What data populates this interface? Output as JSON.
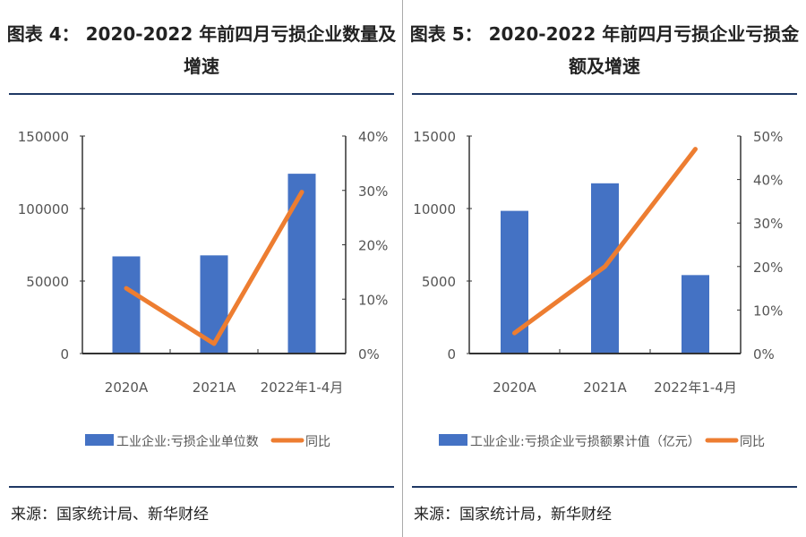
{
  "chart_data": [
    {
      "type": "bar+line",
      "title": "图表 4： 2020-2022 年前四月亏损企业数量及增速",
      "categories": [
        "2020A",
        "2021A",
        "2022年1-4月"
      ],
      "series": [
        {
          "name": "工业企业:亏损企业单位数",
          "type": "bar",
          "axis": "left",
          "color": "#4472c4",
          "values": [
            67000,
            67700,
            124000
          ]
        },
        {
          "name": "同比",
          "type": "line",
          "axis": "right",
          "color": "#ed7d31",
          "values": [
            12,
            1.8,
            29.7
          ]
        }
      ],
      "ylim_left": [
        0,
        150000
      ],
      "yticks_left": [
        "0",
        "50000",
        "100000",
        "150000"
      ],
      "ylim_right": [
        0,
        40
      ],
      "yticks_right": [
        "0%",
        "10%",
        "20%",
        "30%",
        "40%"
      ],
      "legend": "bottom",
      "source": "来源：国家统计局、新华财经"
    },
    {
      "type": "bar+line",
      "title": "图表 5： 2020-2022 年前四月亏损企业亏损金额及增速",
      "categories": [
        "2020A",
        "2021A",
        "2022年1-4月"
      ],
      "series": [
        {
          "name": "工业企业:亏损企业亏损额累计值（亿元）",
          "type": "bar",
          "axis": "left",
          "color": "#4472c4",
          "values": [
            9840,
            11740,
            5410
          ]
        },
        {
          "name": "同比",
          "type": "line",
          "axis": "right",
          "color": "#ed7d31",
          "values": [
            4.7,
            20,
            47
          ]
        }
      ],
      "ylim_left": [
        0,
        15000
      ],
      "yticks_left": [
        "0",
        "5000",
        "10000",
        "15000"
      ],
      "ylim_right": [
        0,
        50
      ],
      "yticks_right": [
        "0%",
        "10%",
        "20%",
        "30%",
        "40%",
        "50%"
      ],
      "legend": "bottom",
      "source": "来源：国家统计局，新华财经"
    }
  ],
  "panels": [
    {
      "title_line1": "图表 4： 2020-2022 年前四月亏损企业数量及",
      "title_line2": "增速",
      "source": "来源：国家统计局、新华财经"
    },
    {
      "title_line1": "图表 5： 2020-2022 年前四月亏损企业亏损金",
      "title_line2": "额及增速",
      "source": "来源：国家统计局，新华财经"
    }
  ]
}
